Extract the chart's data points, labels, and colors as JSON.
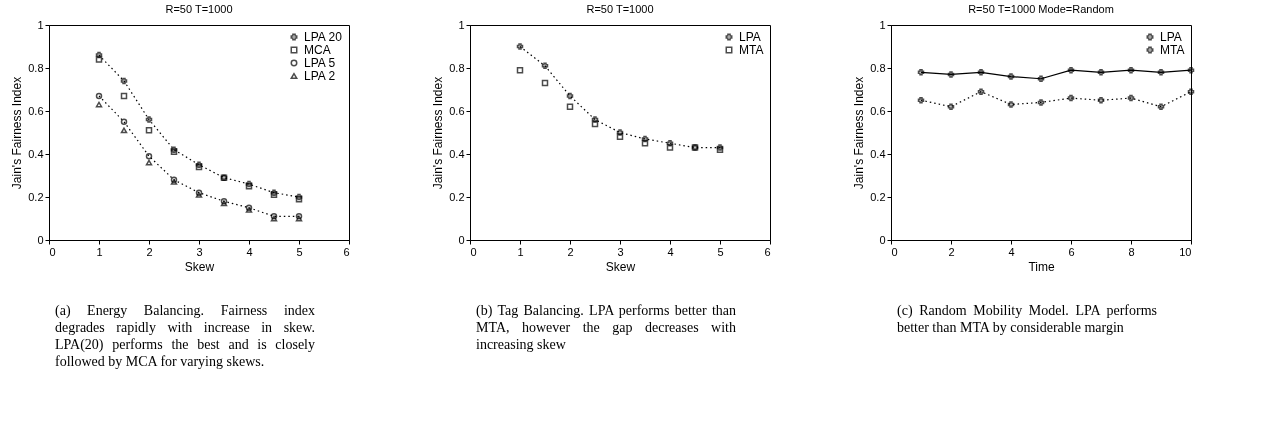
{
  "chart_data": [
    {
      "type": "line",
      "title": "R=50 T=1000",
      "xlabel": "Skew",
      "ylabel": "Jain's Fairness Index",
      "x": [
        1,
        1.5,
        2,
        2.5,
        3,
        3.5,
        4,
        4.5,
        5
      ],
      "xlim": [
        0,
        6
      ],
      "xticks": [
        0,
        1,
        2,
        3,
        4,
        5,
        6
      ],
      "ylim": [
        0,
        1
      ],
      "yticks": [
        0,
        0.2,
        0.4,
        0.6,
        0.8,
        1
      ],
      "legend": "top right",
      "grid": false,
      "series": [
        {
          "name": "LPA 20",
          "type": "line",
          "marker": "cross",
          "line_style": "dotted",
          "color": "#000000",
          "values": [
            0.86,
            0.74,
            0.56,
            0.42,
            0.35,
            0.29,
            0.26,
            0.22,
            0.2
          ]
        },
        {
          "name": "MCA",
          "type": "scatter",
          "marker": "square",
          "color": "#000000",
          "values": [
            0.84,
            0.67,
            0.51,
            0.41,
            0.34,
            0.29,
            0.25,
            0.21,
            0.19
          ]
        },
        {
          "name": "LPA 5",
          "type": "line",
          "marker": "circle",
          "line_style": "dotted",
          "color": "#000000",
          "values": [
            0.67,
            0.55,
            0.39,
            0.28,
            0.22,
            0.18,
            0.15,
            0.11,
            0.11
          ]
        },
        {
          "name": "LPA 2",
          "type": "scatter",
          "marker": "triangle",
          "color": "#000000",
          "values": [
            0.63,
            0.51,
            0.36,
            0.27,
            0.21,
            0.17,
            0.14,
            0.1,
            0.1
          ]
        }
      ],
      "annotations": [
        "(a) Energy Balancing. Fairness index degrades rapidly with increase in skew. LPA(20) performs the best and is closely followed by MCA for varying skews."
      ]
    },
    {
      "type": "line",
      "title": "R=50 T=1000",
      "xlabel": "Skew",
      "ylabel": "Jain's Fairness Index",
      "x": [
        1,
        1.5,
        2,
        2.5,
        3,
        3.5,
        4,
        4.5,
        5
      ],
      "xlim": [
        0,
        6
      ],
      "xticks": [
        0,
        1,
        2,
        3,
        4,
        5,
        6
      ],
      "ylim": [
        0,
        1
      ],
      "yticks": [
        0,
        0.2,
        0.4,
        0.6,
        0.8,
        1
      ],
      "legend": "top right",
      "grid": false,
      "series": [
        {
          "name": "LPA",
          "type": "line",
          "marker": "cross",
          "line_style": "dotted",
          "color": "#000000",
          "values": [
            0.9,
            0.81,
            0.67,
            0.56,
            0.5,
            0.47,
            0.45,
            0.43,
            0.43
          ]
        },
        {
          "name": "MTA",
          "type": "scatter",
          "marker": "square",
          "color": "#000000",
          "values": [
            0.79,
            0.73,
            0.62,
            0.54,
            0.48,
            0.45,
            0.43,
            0.43,
            0.42
          ]
        }
      ],
      "annotations": [
        "(b) Tag Balancing. LPA performs better than MTA, however the gap decreases with increasing skew"
      ]
    },
    {
      "type": "line",
      "title": "R=50 T=1000 Mode=Random",
      "xlabel": "Time",
      "ylabel": "Jain's Fairness Index",
      "x": [
        1,
        2,
        3,
        4,
        5,
        6,
        7,
        8,
        9,
        10
      ],
      "xlim": [
        0,
        10
      ],
      "xticks": [
        0,
        2,
        4,
        6,
        8,
        10
      ],
      "ylim": [
        0,
        1
      ],
      "yticks": [
        0,
        0.2,
        0.4,
        0.6,
        0.8,
        1
      ],
      "legend": "top right",
      "grid": false,
      "series": [
        {
          "name": "LPA",
          "type": "line",
          "marker": "cross",
          "line_style": "solid",
          "color": "#000000",
          "values": [
            0.78,
            0.77,
            0.78,
            0.76,
            0.75,
            0.79,
            0.78,
            0.79,
            0.78,
            0.79
          ]
        },
        {
          "name": "MTA",
          "type": "line",
          "marker": "cross",
          "line_style": "dotted",
          "color": "#000000",
          "values": [
            0.65,
            0.62,
            0.69,
            0.63,
            0.64,
            0.66,
            0.65,
            0.66,
            0.62,
            0.69
          ]
        }
      ],
      "annotations": [
        "(c) Random Mobility Model. LPA performs better than MTA by considerable margin"
      ]
    }
  ]
}
